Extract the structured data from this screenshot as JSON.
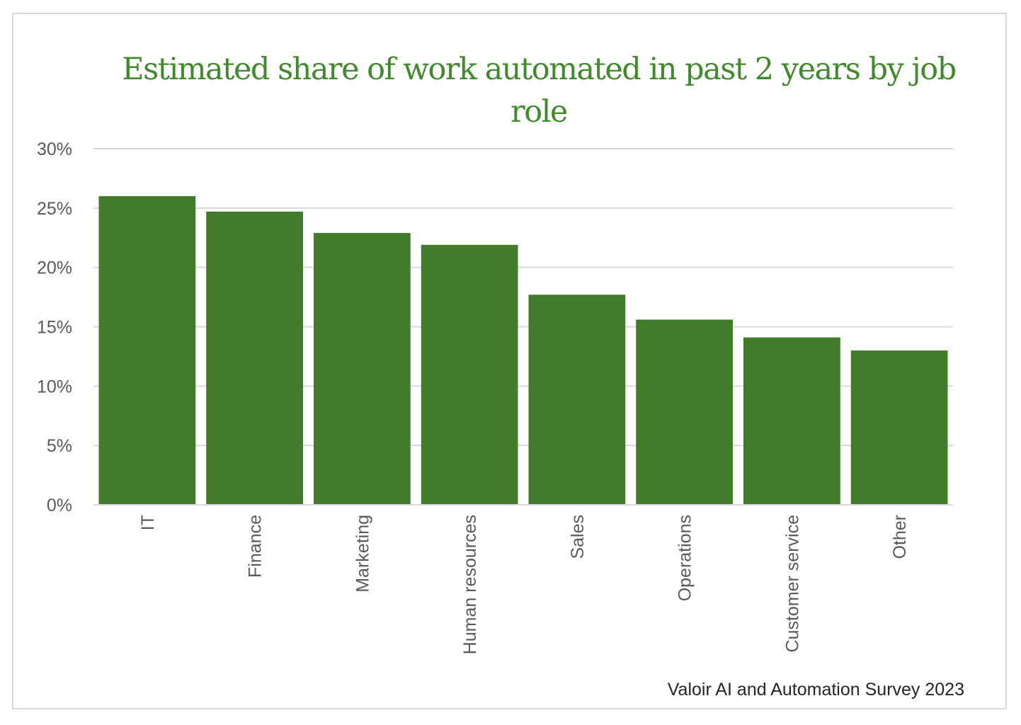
{
  "chart_data": {
    "type": "bar",
    "title": "Estimated share of work automated in past 2 years by job role",
    "source": "Valoir AI and Automation Survey 2023",
    "categories": [
      "IT",
      "Finance",
      "Marketing",
      "Human resources",
      "Sales",
      "Operations",
      "Customer service",
      "Other"
    ],
    "values": [
      26,
      24.7,
      22.9,
      21.9,
      17.7,
      15.6,
      14.1,
      13
    ],
    "value_unit": "%",
    "ylim": [
      0,
      30
    ],
    "yticks": [
      0,
      5,
      10,
      15,
      20,
      25,
      30
    ],
    "ytick_labels": [
      "0%",
      "5%",
      "10%",
      "15%",
      "20%",
      "25%",
      "30%"
    ],
    "grid": true,
    "legend": "none",
    "bar_color": "#427c2a",
    "title_color": "#3f8a2a"
  }
}
